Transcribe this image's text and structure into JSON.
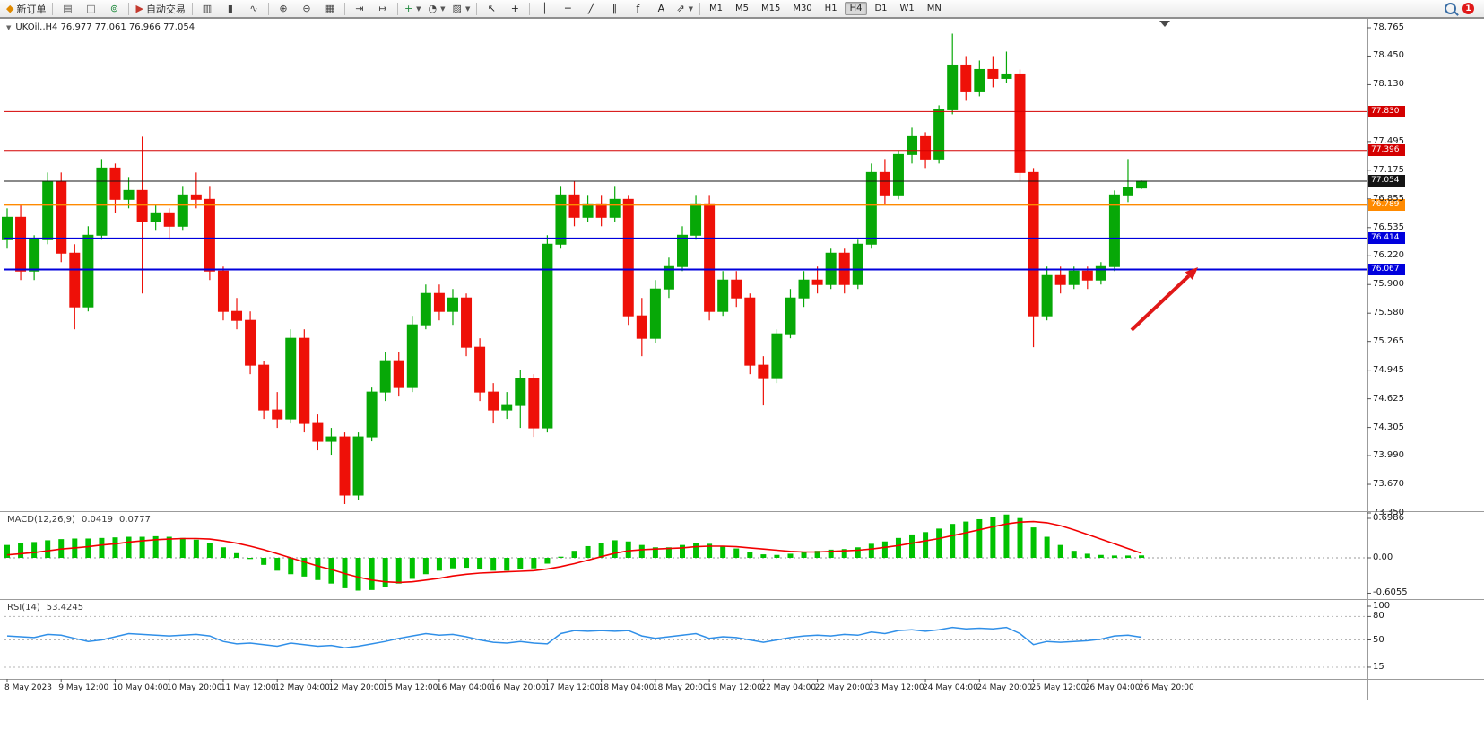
{
  "toolbar": {
    "timeframes": [
      "M1",
      "M5",
      "M15",
      "M30",
      "H1",
      "H4",
      "D1",
      "W1",
      "MN"
    ],
    "active_timeframe": "H4",
    "notification_count": "1",
    "groups": [
      {
        "items": [
          {
            "name": "new-order-button",
            "icon": "order-ticket-icon",
            "glyph": "◆",
            "glyph_color": "#e08a00",
            "label": "新订单"
          }
        ]
      },
      {
        "items": [
          {
            "name": "print-button",
            "icon": "printer-icon",
            "glyph": "▤",
            "glyph_color": "#555"
          },
          {
            "name": "chart-preview-button",
            "icon": "chart-preview-icon",
            "glyph": "◫",
            "glyph_color": "#555"
          },
          {
            "name": "webtrader-button",
            "icon": "globe-icon",
            "glyph": "⊚",
            "glyph_color": "#1f8a3d"
          }
        ]
      },
      {
        "items": [
          {
            "name": "auto-trading-button",
            "icon": "auto-trading-icon",
            "glyph": "▶",
            "glyph_color": "#c43a2f",
            "label": "自动交易"
          }
        ]
      },
      {
        "items": [
          {
            "name": "bar-chart-type-button",
            "icon": "bars-chart-icon",
            "glyph": "▥",
            "glyph_color": "#444"
          },
          {
            "name": "candlestick-chart-type-button",
            "icon": "candlestick-chart-icon",
            "glyph": "▮",
            "glyph_color": "#444"
          },
          {
            "name": "line-chart-type-button",
            "icon": "line-chart-icon",
            "glyph": "∿",
            "glyph_color": "#444"
          }
        ]
      },
      {
        "items": [
          {
            "name": "zoom-in-button",
            "icon": "zoom-in-icon",
            "glyph": "⊕",
            "glyph_color": "#444"
          },
          {
            "name": "zoom-out-button",
            "icon": "zoom-out-icon",
            "glyph": "⊖",
            "glyph_color": "#444"
          },
          {
            "name": "tile-windows-button",
            "icon": "tile-windows-icon",
            "glyph": "▦",
            "glyph_color": "#444"
          }
        ]
      },
      {
        "items": [
          {
            "name": "auto-scroll-button",
            "icon": "auto-scroll-icon",
            "glyph": "⇥",
            "glyph_color": "#444"
          },
          {
            "name": "chart-shift-button",
            "icon": "chart-shift-icon",
            "glyph": "↦",
            "glyph_color": "#444"
          }
        ]
      },
      {
        "items": [
          {
            "name": "indicators-button",
            "icon": "indicators-plus-icon",
            "glyph": "+",
            "glyph_color": "#1f8a3d",
            "caret": true
          },
          {
            "name": "periods-button",
            "icon": "clock-icon",
            "glyph": "◔",
            "glyph_color": "#444",
            "caret": true
          },
          {
            "name": "templates-button",
            "icon": "template-icon",
            "glyph": "▨",
            "glyph_color": "#444",
            "caret": true
          }
        ]
      },
      {
        "items": [
          {
            "name": "cursor-button",
            "icon": "cursor-icon",
            "glyph": "↖",
            "glyph_color": "#222"
          },
          {
            "name": "crosshair-button",
            "icon": "crosshair-icon",
            "glyph": "+",
            "glyph_color": "#222"
          }
        ]
      },
      {
        "items": [
          {
            "name": "vertical-line-button",
            "icon": "vertical-line-icon",
            "glyph": "│",
            "glyph_color": "#222"
          },
          {
            "name": "horizontal-line-button",
            "icon": "horizontal-line-icon",
            "glyph": "─",
            "glyph_color": "#222"
          },
          {
            "name": "trendline-button",
            "icon": "trendline-icon",
            "glyph": "╱",
            "glyph_color": "#222"
          },
          {
            "name": "channel-button",
            "icon": "channel-icon",
            "glyph": "∥",
            "glyph_color": "#222"
          },
          {
            "name": "fibonacci-button",
            "icon": "fibonacci-icon",
            "glyph": "ƒ",
            "glyph_color": "#222"
          },
          {
            "name": "text-button",
            "icon": "text-icon",
            "glyph": "A",
            "glyph_color": "#222"
          },
          {
            "name": "arrows-button",
            "icon": "arrow-tool-icon",
            "glyph": "⇗",
            "glyph_color": "#222",
            "caret": true
          }
        ]
      }
    ]
  },
  "chart": {
    "title": "UKOil.,H4  76.977 77.061 76.966 77.054"
  },
  "chart_data": {
    "type": "candlestick",
    "symbol": "UKOil",
    "timeframe": "H4",
    "last_bar": {
      "open": "76.977",
      "high": "77.061",
      "low": "76.966",
      "close": "77.054"
    },
    "colors": {
      "up": "#07a807",
      "down": "#ee1008",
      "current_price_line": "#141414"
    },
    "price_axis": {
      "min": 73.35,
      "max": 78.765,
      "visible_ticks": [
        "78.765",
        "78.450",
        "78.130",
        "77.495",
        "77.175",
        "76.855",
        "76.535",
        "76.220",
        "75.900",
        "75.580",
        "75.265",
        "74.945",
        "74.625",
        "74.305",
        "73.990",
        "73.670",
        "73.350"
      ]
    },
    "hlines": [
      {
        "price": 77.83,
        "label": "77.830",
        "color": "#d40000",
        "width": 1
      },
      {
        "price": 77.396,
        "label": "77.396",
        "color": "#d40000",
        "width": 1
      },
      {
        "price": 77.054,
        "label": "77.054",
        "color": "#141414",
        "width": 1,
        "current": true
      },
      {
        "price": 76.789,
        "label": "76.789",
        "color": "#ff8a00",
        "width": 2
      },
      {
        "price": 76.414,
        "label": "76.414",
        "color": "#0000dd",
        "width": 2
      },
      {
        "price": 76.067,
        "label": "76.067",
        "color": "#0000dd",
        "width": 2
      }
    ],
    "candles": [
      [
        76.4,
        76.75,
        76.3,
        76.65
      ],
      [
        76.65,
        76.8,
        75.95,
        76.05
      ],
      [
        76.05,
        76.45,
        75.95,
        76.4
      ],
      [
        76.4,
        77.15,
        76.35,
        77.05
      ],
      [
        77.05,
        77.15,
        76.15,
        76.25
      ],
      [
        76.25,
        76.35,
        75.4,
        75.65
      ],
      [
        75.65,
        76.55,
        75.6,
        76.45
      ],
      [
        76.45,
        77.3,
        76.4,
        77.2
      ],
      [
        77.2,
        77.25,
        76.7,
        76.85
      ],
      [
        76.85,
        77.1,
        76.75,
        76.95
      ],
      [
        76.95,
        77.55,
        75.8,
        76.6
      ],
      [
        76.6,
        76.8,
        76.5,
        76.7
      ],
      [
        76.7,
        76.75,
        76.4,
        76.55
      ],
      [
        76.55,
        77.0,
        76.5,
        76.9
      ],
      [
        76.9,
        77.15,
        76.75,
        76.85
      ],
      [
        76.85,
        77.0,
        75.95,
        76.05
      ],
      [
        76.05,
        76.1,
        75.5,
        75.6
      ],
      [
        75.6,
        75.75,
        75.4,
        75.5
      ],
      [
        75.5,
        75.6,
        74.9,
        75.0
      ],
      [
        75.0,
        75.05,
        74.4,
        74.5
      ],
      [
        74.5,
        74.7,
        74.3,
        74.4
      ],
      [
        74.4,
        75.4,
        74.35,
        75.3
      ],
      [
        75.3,
        75.4,
        74.25,
        74.35
      ],
      [
        74.35,
        74.45,
        74.05,
        74.15
      ],
      [
        74.15,
        74.3,
        74.0,
        74.2
      ],
      [
        74.2,
        74.25,
        73.45,
        73.55
      ],
      [
        73.55,
        74.25,
        73.5,
        74.2
      ],
      [
        74.2,
        74.75,
        74.15,
        74.7
      ],
      [
        74.7,
        75.15,
        74.6,
        75.05
      ],
      [
        75.05,
        75.15,
        74.65,
        74.75
      ],
      [
        74.75,
        75.55,
        74.7,
        75.45
      ],
      [
        75.45,
        75.9,
        75.4,
        75.8
      ],
      [
        75.8,
        75.9,
        75.5,
        75.6
      ],
      [
        75.6,
        75.85,
        75.45,
        75.75
      ],
      [
        75.75,
        75.8,
        75.1,
        75.2
      ],
      [
        75.2,
        75.3,
        74.6,
        74.7
      ],
      [
        74.7,
        74.8,
        74.35,
        74.5
      ],
      [
        74.5,
        74.7,
        74.4,
        74.55
      ],
      [
        74.55,
        74.95,
        74.3,
        74.85
      ],
      [
        74.85,
        74.9,
        74.2,
        74.3
      ],
      [
        74.3,
        76.45,
        74.25,
        76.35
      ],
      [
        76.35,
        77.0,
        76.3,
        76.9
      ],
      [
        76.9,
        77.05,
        76.55,
        76.65
      ],
      [
        76.65,
        76.9,
        76.6,
        76.8
      ],
      [
        76.8,
        76.9,
        76.55,
        76.65
      ],
      [
        76.65,
        77.0,
        76.6,
        76.85
      ],
      [
        76.85,
        76.9,
        75.45,
        75.55
      ],
      [
        75.55,
        75.75,
        75.1,
        75.3
      ],
      [
        75.3,
        75.95,
        75.25,
        75.85
      ],
      [
        75.85,
        76.2,
        75.75,
        76.1
      ],
      [
        76.1,
        76.55,
        76.05,
        76.45
      ],
      [
        76.45,
        76.9,
        76.4,
        76.8
      ],
      [
        76.8,
        76.9,
        75.5,
        75.6
      ],
      [
        75.6,
        76.05,
        75.55,
        75.95
      ],
      [
        75.95,
        76.05,
        75.65,
        75.75
      ],
      [
        75.75,
        75.8,
        74.9,
        75.0
      ],
      [
        75.0,
        75.1,
        74.55,
        74.85
      ],
      [
        74.85,
        75.4,
        74.8,
        75.35
      ],
      [
        75.35,
        75.85,
        75.3,
        75.75
      ],
      [
        75.75,
        76.05,
        75.65,
        75.95
      ],
      [
        75.95,
        76.1,
        75.8,
        75.9
      ],
      [
        75.9,
        76.3,
        75.85,
        76.25
      ],
      [
        76.25,
        76.3,
        75.8,
        75.9
      ],
      [
        75.9,
        76.4,
        75.85,
        76.35
      ],
      [
        76.35,
        77.25,
        76.3,
        77.15
      ],
      [
        77.15,
        77.3,
        76.8,
        76.9
      ],
      [
        76.9,
        77.4,
        76.85,
        77.35
      ],
      [
        77.35,
        77.65,
        77.25,
        77.55
      ],
      [
        77.55,
        77.6,
        77.2,
        77.3
      ],
      [
        77.3,
        77.9,
        77.25,
        77.85
      ],
      [
        77.85,
        78.7,
        77.8,
        78.35
      ],
      [
        78.35,
        78.45,
        77.95,
        78.05
      ],
      [
        78.05,
        78.4,
        78.0,
        78.3
      ],
      [
        78.3,
        78.45,
        78.1,
        78.2
      ],
      [
        78.2,
        78.5,
        78.15,
        78.25
      ],
      [
        78.25,
        78.3,
        77.05,
        77.15
      ],
      [
        77.15,
        77.2,
        75.2,
        75.55
      ],
      [
        75.55,
        76.1,
        75.5,
        76.0
      ],
      [
        76.0,
        76.1,
        75.8,
        75.9
      ],
      [
        75.9,
        76.1,
        75.85,
        76.05
      ],
      [
        76.05,
        76.1,
        75.85,
        75.95
      ],
      [
        75.95,
        76.15,
        75.9,
        76.1
      ],
      [
        76.1,
        76.95,
        76.05,
        76.9
      ],
      [
        76.9,
        77.3,
        76.82,
        76.98
      ],
      [
        76.977,
        77.061,
        76.966,
        77.054
      ]
    ],
    "time_labels": [
      [
        "8 May 2023",
        0
      ],
      [
        "9 May 12:00",
        4
      ],
      [
        "10 May 04:00",
        8
      ],
      [
        "10 May 20:00",
        12
      ],
      [
        "11 May 12:00",
        16
      ],
      [
        "12 May 04:00",
        20
      ],
      [
        "12 May 20:00",
        24
      ],
      [
        "15 May 12:00",
        28
      ],
      [
        "16 May 04:00",
        32
      ],
      [
        "16 May 20:00",
        36
      ],
      [
        "17 May 12:00",
        40
      ],
      [
        "18 May 04:00",
        44
      ],
      [
        "18 May 20:00",
        48
      ],
      [
        "19 May 12:00",
        52
      ],
      [
        "22 May 04:00",
        56
      ],
      [
        "22 May 20:00",
        60
      ],
      [
        "23 May 12:00",
        64
      ],
      [
        "24 May 04:00",
        68
      ],
      [
        "24 May 20:00",
        72
      ],
      [
        "25 May 12:00",
        76
      ],
      [
        "26 May 04:00",
        80
      ],
      [
        "26 May 20:00",
        84
      ]
    ],
    "indicators": {
      "macd": {
        "name": "MACD(12,26,9)",
        "value_main": "0.0419",
        "value_signal": "0.0777",
        "axis_labels": [
          "0.6986",
          "0.00",
          "-0.6055"
        ],
        "range": [
          -0.6055,
          0.6986
        ],
        "colors": {
          "histogram": "#00c200",
          "signal": "#f20000"
        },
        "histogram": [
          0.22,
          0.25,
          0.27,
          0.3,
          0.32,
          0.33,
          0.33,
          0.34,
          0.35,
          0.36,
          0.36,
          0.37,
          0.36,
          0.34,
          0.31,
          0.26,
          0.18,
          0.08,
          -0.02,
          -0.12,
          -0.22,
          -0.28,
          -0.32,
          -0.38,
          -0.44,
          -0.52,
          -0.56,
          -0.55,
          -0.5,
          -0.44,
          -0.36,
          -0.28,
          -0.22,
          -0.18,
          -0.17,
          -0.2,
          -0.22,
          -0.22,
          -0.2,
          -0.18,
          -0.1,
          0.02,
          0.12,
          0.2,
          0.26,
          0.3,
          0.28,
          0.22,
          0.18,
          0.18,
          0.22,
          0.26,
          0.24,
          0.2,
          0.16,
          0.1,
          0.06,
          0.05,
          0.07,
          0.1,
          0.12,
          0.14,
          0.15,
          0.18,
          0.24,
          0.28,
          0.34,
          0.4,
          0.44,
          0.5,
          0.58,
          0.62,
          0.66,
          0.7,
          0.74,
          0.68,
          0.52,
          0.36,
          0.22,
          0.12,
          0.07,
          0.05,
          0.04,
          0.04,
          0.042
        ],
        "signal": [
          0.05,
          0.07,
          0.09,
          0.12,
          0.15,
          0.17,
          0.19,
          0.22,
          0.24,
          0.27,
          0.29,
          0.31,
          0.32,
          0.33,
          0.33,
          0.32,
          0.29,
          0.25,
          0.2,
          0.14,
          0.07,
          0.0,
          -0.07,
          -0.14,
          -0.2,
          -0.27,
          -0.33,
          -0.38,
          -0.41,
          -0.42,
          -0.41,
          -0.38,
          -0.35,
          -0.31,
          -0.28,
          -0.26,
          -0.25,
          -0.24,
          -0.23,
          -0.22,
          -0.19,
          -0.15,
          -0.1,
          -0.04,
          0.02,
          0.08,
          0.12,
          0.14,
          0.15,
          0.16,
          0.17,
          0.19,
          0.2,
          0.2,
          0.19,
          0.17,
          0.15,
          0.13,
          0.11,
          0.1,
          0.1,
          0.11,
          0.12,
          0.13,
          0.15,
          0.18,
          0.21,
          0.25,
          0.29,
          0.33,
          0.38,
          0.43,
          0.48,
          0.53,
          0.58,
          0.61,
          0.62,
          0.6,
          0.55,
          0.48,
          0.4,
          0.32,
          0.24,
          0.16,
          0.08
        ]
      },
      "rsi": {
        "name": "RSI(14)",
        "value": "53.4245",
        "axis_labels": [
          "100",
          "80",
          "50",
          "15"
        ],
        "levels": [
          80,
          50,
          15
        ],
        "color": "#2f8fe8",
        "series": [
          55,
          54,
          53,
          57,
          56,
          52,
          48,
          50,
          54,
          58,
          57,
          56,
          55,
          56,
          57,
          55,
          48,
          45,
          46,
          44,
          42,
          46,
          44,
          42,
          43,
          40,
          42,
          45,
          48,
          52,
          55,
          58,
          56,
          57,
          54,
          50,
          47,
          46,
          48,
          46,
          45,
          58,
          62,
          61,
          62,
          61,
          62,
          55,
          52,
          54,
          56,
          58,
          52,
          54,
          53,
          50,
          47,
          50,
          53,
          55,
          56,
          55,
          57,
          56,
          60,
          58,
          62,
          63,
          61,
          63,
          66,
          64,
          65,
          64,
          66,
          58,
          44,
          48,
          47,
          48,
          49,
          51,
          55,
          56,
          53.4
        ]
      }
    },
    "annotations": {
      "arrow": {
        "from": [
          1262,
          368
        ],
        "to": [
          1336,
          298
        ],
        "color": "#e01818"
      }
    }
  }
}
